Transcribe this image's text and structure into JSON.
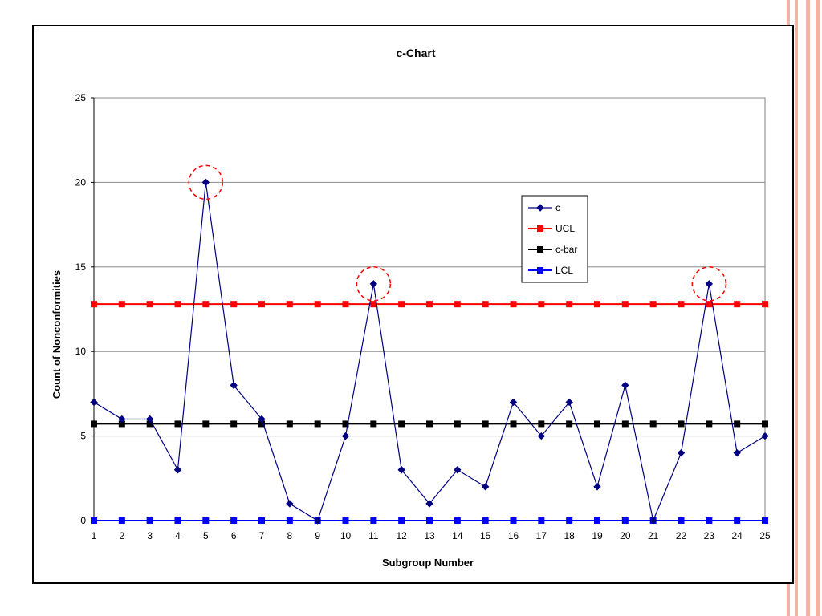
{
  "chart_data": {
    "type": "line",
    "title": "c-Chart",
    "xlabel": "Subgroup Number",
    "ylabel": "Count of Nonconformities",
    "categories": [
      "1",
      "2",
      "3",
      "4",
      "5",
      "6",
      "7",
      "8",
      "9",
      "10",
      "11",
      "12",
      "13",
      "14",
      "15",
      "16",
      "17",
      "18",
      "19",
      "20",
      "21",
      "22",
      "23",
      "24",
      "25"
    ],
    "ylim": [
      0,
      25
    ],
    "yticks": [
      "0",
      "5",
      "10",
      "15",
      "20",
      "25"
    ],
    "grid": true,
    "legend_position": "right",
    "series": [
      {
        "name": "c",
        "marker": "diamond",
        "color": "#000080",
        "values": [
          7,
          6,
          6,
          3,
          20,
          8,
          6,
          1,
          0,
          5,
          14,
          3,
          1,
          3,
          2,
          7,
          5,
          7,
          2,
          8,
          0,
          4,
          14,
          4,
          5
        ]
      },
      {
        "name": "UCL",
        "marker": "square",
        "color": "#ff0000",
        "values": [
          12.8,
          12.8,
          12.8,
          12.8,
          12.8,
          12.8,
          12.8,
          12.8,
          12.8,
          12.8,
          12.8,
          12.8,
          12.8,
          12.8,
          12.8,
          12.8,
          12.8,
          12.8,
          12.8,
          12.8,
          12.8,
          12.8,
          12.8,
          12.8,
          12.8
        ]
      },
      {
        "name": "c-bar",
        "marker": "square",
        "color": "#000000",
        "values": [
          5.72,
          5.72,
          5.72,
          5.72,
          5.72,
          5.72,
          5.72,
          5.72,
          5.72,
          5.72,
          5.72,
          5.72,
          5.72,
          5.72,
          5.72,
          5.72,
          5.72,
          5.72,
          5.72,
          5.72,
          5.72,
          5.72,
          5.72,
          5.72,
          5.72
        ]
      },
      {
        "name": "LCL",
        "marker": "square",
        "color": "#0000ff",
        "values": [
          0,
          0,
          0,
          0,
          0,
          0,
          0,
          0,
          0,
          0,
          0,
          0,
          0,
          0,
          0,
          0,
          0,
          0,
          0,
          0,
          0,
          0,
          0,
          0,
          0
        ]
      }
    ],
    "highlighted_points": [
      "5",
      "11",
      "23"
    ],
    "highlight_color": "#ff0000"
  }
}
